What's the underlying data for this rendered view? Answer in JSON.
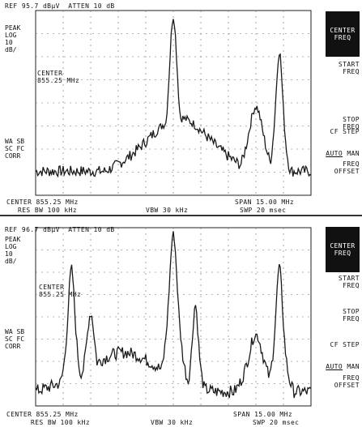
{
  "panels": [
    {
      "header": "REF 95.7 dBµV  ATTEN 10 dB",
      "scale": [
        "PEAK",
        "LOG",
        "10",
        "dB/"
      ],
      "marker": [
        "CENTER",
        "855.25 MHz"
      ],
      "status_labels": [
        "WA SB",
        "SC FC",
        "CORR"
      ],
      "footer_left": "CENTER 855.25 MHz",
      "footer_right": "SPAN 15.00 MHz",
      "footer_rbw": "RES BW 100 kHz",
      "footer_vbw": "VBW 30 kHz",
      "footer_swp": "SWP 20 msec",
      "softkeys": {
        "active": [
          "CENTER",
          "FREQ"
        ],
        "start": [
          "START",
          "FREQ"
        ],
        "stop": [
          "STOP",
          "FREQ"
        ],
        "cf_step": "CF STEP",
        "auto": "AUTO",
        "man": "MAN",
        "offset": [
          "FREQ",
          "OFFSET"
        ]
      }
    },
    {
      "header": "REF 96.7 dBµV  ATTEN 10 dB",
      "scale": [
        "PEAK",
        "LOG",
        "10",
        "dB/"
      ],
      "marker": [
        "CENTER",
        "855.25 MHz"
      ],
      "status_labels": [
        "WA SB",
        "SC FC",
        "CORR"
      ],
      "footer_left": "CENTER 855.25 MHz",
      "footer_right": "SPAN 15.00 MHz",
      "footer_rbw": "RES BW 100 kHz",
      "footer_vbw": "VBW 30 kHz",
      "footer_swp": "SWP 20 msec",
      "softkeys": {
        "active": [
          "CENTER",
          "FREQ"
        ],
        "start": [
          "START",
          "FREQ"
        ],
        "stop": [
          "STOP",
          "FREQ"
        ],
        "cf_step": "CF STEP",
        "auto": "AUTO",
        "man": "MAN",
        "offset": [
          "FREQ",
          "OFFSET"
        ]
      }
    }
  ],
  "colors": {
    "trace": "#1a1a1a",
    "grid": "#6a6a6a",
    "active_key_bg": "#111111"
  }
}
